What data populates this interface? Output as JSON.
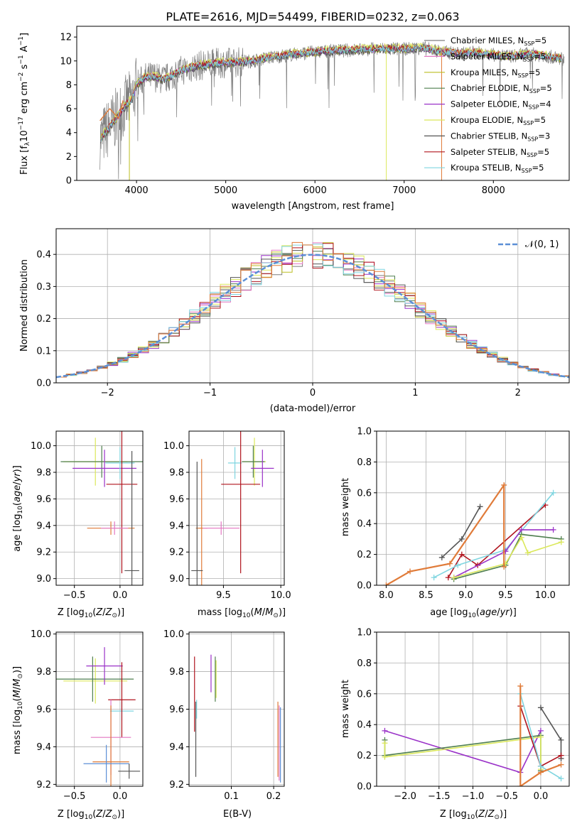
{
  "title": "PLATE=2616, MJD=54499, FIBERID=0232, z=0.063",
  "colors": {
    "chabrier_miles": "#7f7f7f",
    "salpeter_miles": "#e377c2",
    "kroupa_miles": "#bcbd22",
    "chabrier_elodie": "#4f7f4f",
    "salpeter_elodie": "#9a32c8",
    "kroupa_elodie": "#dbe85a",
    "chabrier_stelib": "#555555",
    "salpeter_stelib": "#b0141e",
    "kroupa_stelib": "#7fd5e0",
    "orange": "#e07b39",
    "normal": "#5b8fd6"
  },
  "chart_data": [
    {
      "id": "spectrum",
      "type": "line",
      "title": "PLATE=2616, MJD=54499, FIBERID=0232, z=0.063",
      "xlabel": "wavelength [Angstrom, rest frame]",
      "ylabel": "Flux [f_λ 10^-17 erg cm^-2 s^-1 A^-1]",
      "xlim": [
        3330,
        8850
      ],
      "ylim": [
        0,
        12.9
      ],
      "xticks": [
        "4000",
        "5000",
        "6000",
        "7000",
        "8000"
      ],
      "yticks": [
        "0",
        "2",
        "4",
        "6",
        "8",
        "10",
        "12"
      ],
      "grid": false,
      "legend_position": "top-right",
      "continuum": {
        "x": [
          3600,
          3700,
          3800,
          3900,
          3950,
          4000,
          4100,
          4200,
          4300,
          4500,
          4700,
          4900,
          5100,
          5300,
          5500,
          5800,
          6100,
          6400,
          6700,
          7000,
          7200,
          7400,
          7600,
          7800,
          8000,
          8200,
          8400,
          8600,
          8750
        ],
        "y": [
          3.5,
          4.5,
          5.5,
          6.5,
          6.8,
          8.0,
          8.6,
          8.7,
          8.4,
          9.2,
          9.6,
          9.8,
          9.9,
          10.0,
          10.3,
          10.6,
          10.8,
          10.9,
          11.0,
          11.0,
          11.1,
          10.8,
          10.6,
          10.7,
          10.5,
          10.4,
          10.6,
          10.4,
          10.2
        ]
      },
      "series": [
        {
          "name": "Chabrier MILES, N_SSP=5"
        },
        {
          "name": "Salpeter MILES, N_SSP=5"
        },
        {
          "name": "Kroupa MILES, N_SSP=5"
        },
        {
          "name": "Chabrier ELODIE, N_SSP=5"
        },
        {
          "name": "Salpeter ELODIE, N_SSP=4"
        },
        {
          "name": "Kroupa ELODIE, N_SSP=5"
        },
        {
          "name": "Chabrier STELIB, N_SSP=3"
        },
        {
          "name": "Salpeter STELIB, N_SSP=5"
        },
        {
          "name": "Kroupa STELIB, N_SSP=5"
        }
      ]
    },
    {
      "id": "residuals",
      "type": "line",
      "xlabel": "(data-model)/error",
      "ylabel": "Normed distribution",
      "xlim": [
        -2.5,
        2.5
      ],
      "ylim": [
        0,
        0.48
      ],
      "xticks": [
        "−2",
        "−1",
        "0",
        "1",
        "2"
      ],
      "yticks": [
        "0.0",
        "0.1",
        "0.2",
        "0.3",
        "0.4"
      ],
      "grid": true,
      "legend_position": "top-right",
      "legend_label": "𝒩(0, 1)"
    },
    {
      "id": "age_vs_Z",
      "type": "scatter",
      "xlabel": "Z [log10(Z/Z⊙)]",
      "ylabel": "age  [log10(age/yr)]",
      "xlim": [
        -0.7,
        0.25
      ],
      "ylim": [
        8.95,
        10.11
      ],
      "xticks": [
        "−0.5",
        "0.0"
      ],
      "xtick_values": [
        -0.5,
        0.0
      ],
      "yticks": [
        "9.0",
        "9.2",
        "9.4",
        "9.6",
        "9.8",
        "10.0"
      ],
      "ytick_values": [
        9.0,
        9.2,
        9.4,
        9.6,
        9.8,
        10.0
      ],
      "grid": true,
      "points": [
        {
          "x": -0.27,
          "y": 9.88,
          "xe": 0.35,
          "ye": 0.18,
          "c": "kroupa_elodie"
        },
        {
          "x": -0.2,
          "y": 9.88,
          "xe": 0.45,
          "ye": 0.12,
          "c": "chabrier_elodie"
        },
        {
          "x": -0.17,
          "y": 9.83,
          "xe": 0.35,
          "ye": 0.14,
          "c": "salpeter_elodie"
        },
        {
          "x": 0.0,
          "y": 9.87,
          "xe": 0.16,
          "ye": 0.12,
          "c": "kroupa_stelib"
        },
        {
          "x": 0.02,
          "y": 9.71,
          "xe": 0.17,
          "ye": 0.67,
          "c": "salpeter_stelib"
        },
        {
          "x": -0.1,
          "y": 9.38,
          "xe": 0.26,
          "ye": 0.05,
          "c": "orange"
        },
        {
          "x": -0.06,
          "y": 9.38,
          "xe": 0.15,
          "ye": 0.05,
          "c": "salpeter_miles"
        },
        {
          "x": 0.13,
          "y": 9.06,
          "xe": 0.08,
          "ye": 0.9,
          "c": "chabrier_stelib"
        }
      ]
    },
    {
      "id": "age_vs_mass",
      "type": "scatter",
      "xlabel": "mass [log10(M/M⊙)]",
      "ylabel": "",
      "xlim": [
        9.2,
        10.03
      ],
      "ylim": [
        8.95,
        10.11
      ],
      "xticks": [
        "9.5",
        "10.0"
      ],
      "xtick_values": [
        9.5,
        10.0
      ],
      "yticks": [
        "9.0",
        "9.2",
        "9.4",
        "9.6",
        "9.8",
        "10.0"
      ],
      "ytick_values": [
        9.0,
        9.2,
        9.4,
        9.6,
        9.8,
        10.0
      ],
      "grid": true,
      "points": [
        {
          "x": 9.77,
          "y": 9.88,
          "xe": 0.1,
          "ye": 0.18,
          "c": "kroupa_elodie"
        },
        {
          "x": 9.76,
          "y": 9.88,
          "xe": 0.1,
          "ye": 0.12,
          "c": "chabrier_elodie"
        },
        {
          "x": 9.84,
          "y": 9.83,
          "xe": 0.1,
          "ye": 0.14,
          "c": "salpeter_elodie"
        },
        {
          "x": 9.6,
          "y": 9.87,
          "xe": 0.06,
          "ye": 0.12,
          "c": "kroupa_stelib"
        },
        {
          "x": 9.65,
          "y": 9.71,
          "xe": 0.17,
          "ye": 0.67,
          "c": "salpeter_stelib"
        },
        {
          "x": 9.31,
          "y": 9.38,
          "xe": 0.05,
          "ye": 0.52,
          "c": "orange"
        },
        {
          "x": 9.48,
          "y": 9.38,
          "xe": 0.16,
          "ye": 0.05,
          "c": "salpeter_miles"
        },
        {
          "x": 9.27,
          "y": 9.06,
          "xe": 0.05,
          "ye": 0.82,
          "c": "chabrier_stelib"
        }
      ]
    },
    {
      "id": "weight_vs_age",
      "type": "line",
      "xlabel": "age  [log10(age/yr)]",
      "ylabel": "mass weight",
      "xlim": [
        7.88,
        10.3
      ],
      "ylim": [
        0,
        1
      ],
      "xticks": [
        "8.0",
        "8.5",
        "9.0",
        "9.5",
        "10.0"
      ],
      "xtick_values": [
        8.0,
        8.5,
        9.0,
        9.5,
        10.0
      ],
      "yticks": [
        "0.0",
        "0.2",
        "0.4",
        "0.6",
        "0.8",
        "1.0"
      ],
      "ytick_values": [
        0,
        0.2,
        0.4,
        0.6,
        0.8,
        1.0
      ],
      "grid": true,
      "series": [
        {
          "c": "chabrier_stelib",
          "x": [
            8.7,
            8.95,
            9.18
          ],
          "y": [
            0.18,
            0.3,
            0.51
          ]
        },
        {
          "c": "salpeter_stelib",
          "x": [
            8.78,
            8.95,
            9.15,
            10.0
          ],
          "y": [
            0.05,
            0.2,
            0.13,
            0.52
          ]
        },
        {
          "c": "kroupa_stelib",
          "x": [
            8.6,
            8.9,
            9.5,
            10.1
          ],
          "y": [
            0.05,
            0.13,
            0.23,
            0.6
          ]
        },
        {
          "c": "salpeter_elodie",
          "x": [
            8.85,
            9.5,
            9.7,
            10.1
          ],
          "y": [
            0.05,
            0.22,
            0.36,
            0.36
          ]
        },
        {
          "c": "chabrier_elodie",
          "x": [
            8.85,
            9.5,
            9.7,
            10.2
          ],
          "y": [
            0.04,
            0.13,
            0.33,
            0.3
          ]
        },
        {
          "c": "kroupa_elodie",
          "x": [
            8.85,
            9.5,
            9.7,
            9.78,
            10.2
          ],
          "y": [
            0.05,
            0.14,
            0.31,
            0.21,
            0.28
          ]
        },
        {
          "c": "orange",
          "x": [
            8.0,
            8.3,
            8.8,
            9.48,
            9.48
          ],
          "y": [
            0.0,
            0.09,
            0.14,
            0.65,
            0.12
          ]
        }
      ]
    },
    {
      "id": "mass_vs_Z",
      "type": "scatter",
      "xlabel": "Z [log10(Z/Z⊙)]",
      "ylabel": "mass [log10(M/M⊙)]",
      "xlim": [
        -0.7,
        0.25
      ],
      "ylim": [
        9.19,
        10.01
      ],
      "xticks": [
        "−0.5",
        "0.0"
      ],
      "xtick_values": [
        -0.5,
        0.0
      ],
      "yticks": [
        "9.2",
        "9.4",
        "9.6",
        "9.8",
        "10.0"
      ],
      "ytick_values": [
        9.2,
        9.4,
        9.6,
        9.8,
        10.0
      ],
      "grid": true,
      "points": [
        {
          "x": -0.27,
          "y": 9.75,
          "xe": 0.35,
          "ye": 0.12,
          "c": "kroupa_elodie"
        },
        {
          "x": -0.3,
          "y": 9.76,
          "xe": 0.45,
          "ye": 0.12,
          "c": "chabrier_elodie"
        },
        {
          "x": -0.17,
          "y": 9.83,
          "xe": 0.2,
          "ye": 0.1,
          "c": "salpeter_elodie"
        },
        {
          "x": 0.02,
          "y": 9.59,
          "xe": 0.13,
          "ye": 0.05,
          "c": "kroupa_stelib"
        },
        {
          "x": 0.02,
          "y": 9.65,
          "xe": 0.15,
          "ye": 0.2,
          "c": "salpeter_stelib"
        },
        {
          "x": -0.1,
          "y": 9.45,
          "xe": 0.22,
          "ye": 0.2,
          "c": "salpeter_miles"
        },
        {
          "x": -0.1,
          "y": 9.32,
          "xe": 0.2,
          "ye": 0.3,
          "c": "orange"
        },
        {
          "x": -0.15,
          "y": 9.31,
          "xe": 0.25,
          "ye": 0.1,
          "c": "normal"
        },
        {
          "x": 0.1,
          "y": 9.27,
          "xe": 0.12,
          "ye": 0.04,
          "c": "chabrier_stelib"
        }
      ]
    },
    {
      "id": "mass_vs_ebv",
      "type": "scatter",
      "xlabel": "E(B-V)",
      "ylabel": "",
      "xlim": [
        0.0,
        0.225
      ],
      "ylim": [
        9.19,
        10.01
      ],
      "xticks": [
        "0.1",
        "0.2"
      ],
      "xtick_values": [
        0.1,
        0.2
      ],
      "yticks": [
        "9.2",
        "9.4",
        "9.6",
        "9.8",
        "10.0"
      ],
      "ytick_values": [
        9.2,
        9.4,
        9.6,
        9.8,
        10.0
      ],
      "grid": true,
      "points": [
        {
          "x": 0.013,
          "y": 9.68,
          "xe": 0,
          "ye": 0.2,
          "c": "salpeter_stelib"
        },
        {
          "x": 0.016,
          "y": 9.44,
          "xe": 0,
          "ye": 0.2,
          "c": "chabrier_stelib"
        },
        {
          "x": 0.018,
          "y": 9.6,
          "xe": 0,
          "ye": 0.05,
          "c": "kroupa_stelib"
        },
        {
          "x": 0.052,
          "y": 9.79,
          "xe": 0,
          "ye": 0.1,
          "c": "salpeter_elodie"
        },
        {
          "x": 0.062,
          "y": 9.76,
          "xe": 0,
          "ye": 0.12,
          "c": "chabrier_elodie"
        },
        {
          "x": 0.064,
          "y": 9.76,
          "xe": 0,
          "ye": 0.1,
          "c": "kroupa_elodie"
        },
        {
          "x": 0.21,
          "y": 9.44,
          "xe": 0,
          "ye": 0.2,
          "c": "orange"
        },
        {
          "x": 0.213,
          "y": 9.42,
          "xe": 0,
          "ye": 0.2,
          "c": "salpeter_miles"
        },
        {
          "x": 0.216,
          "y": 9.41,
          "xe": 0,
          "ye": 0.2,
          "c": "normal"
        }
      ]
    },
    {
      "id": "weight_vs_Z",
      "type": "line",
      "xlabel": "Z [log10(Z/Z⊙)]",
      "ylabel": "mass weight",
      "xlim": [
        -2.42,
        0.42
      ],
      "ylim": [
        0,
        1
      ],
      "xticks": [
        "−2.0",
        "−1.5",
        "−1.0",
        "−0.5",
        "0.0"
      ],
      "xtick_values": [
        -2.0,
        -1.5,
        -1.0,
        -0.5,
        0.0
      ],
      "yticks": [
        "0.0",
        "0.2",
        "0.4",
        "0.6",
        "0.8",
        "1.0"
      ],
      "ytick_values": [
        0,
        0.2,
        0.4,
        0.6,
        0.8,
        1.0
      ],
      "grid": true,
      "series": [
        {
          "c": "salpeter_elodie",
          "x": [
            -2.3,
            -0.3,
            0.0
          ],
          "y": [
            0.36,
            0.09,
            0.36
          ]
        },
        {
          "c": "chabrier_elodie",
          "x": [
            -2.3,
            -2.3,
            0.0,
            0.0
          ],
          "y": [
            0.3,
            0.2,
            0.33,
            0.1
          ]
        },
        {
          "c": "kroupa_elodie",
          "x": [
            -2.3,
            -2.3,
            0.0,
            0.0
          ],
          "y": [
            0.28,
            0.19,
            0.32,
            0.11
          ]
        },
        {
          "c": "chabrier_stelib",
          "x": [
            0.0,
            0.3,
            0.3
          ],
          "y": [
            0.51,
            0.3,
            0.18
          ]
        },
        {
          "c": "salpeter_stelib",
          "x": [
            -0.3,
            0.0,
            0.3
          ],
          "y": [
            0.52,
            0.13,
            0.2
          ]
        },
        {
          "c": "kroupa_stelib",
          "x": [
            -0.3,
            0.0,
            0.3
          ],
          "y": [
            0.6,
            0.13,
            0.05
          ]
        },
        {
          "c": "orange",
          "x": [
            -0.3,
            -0.3,
            0.0,
            0.3
          ],
          "y": [
            0.65,
            0.0,
            0.09,
            0.14
          ]
        }
      ]
    }
  ]
}
